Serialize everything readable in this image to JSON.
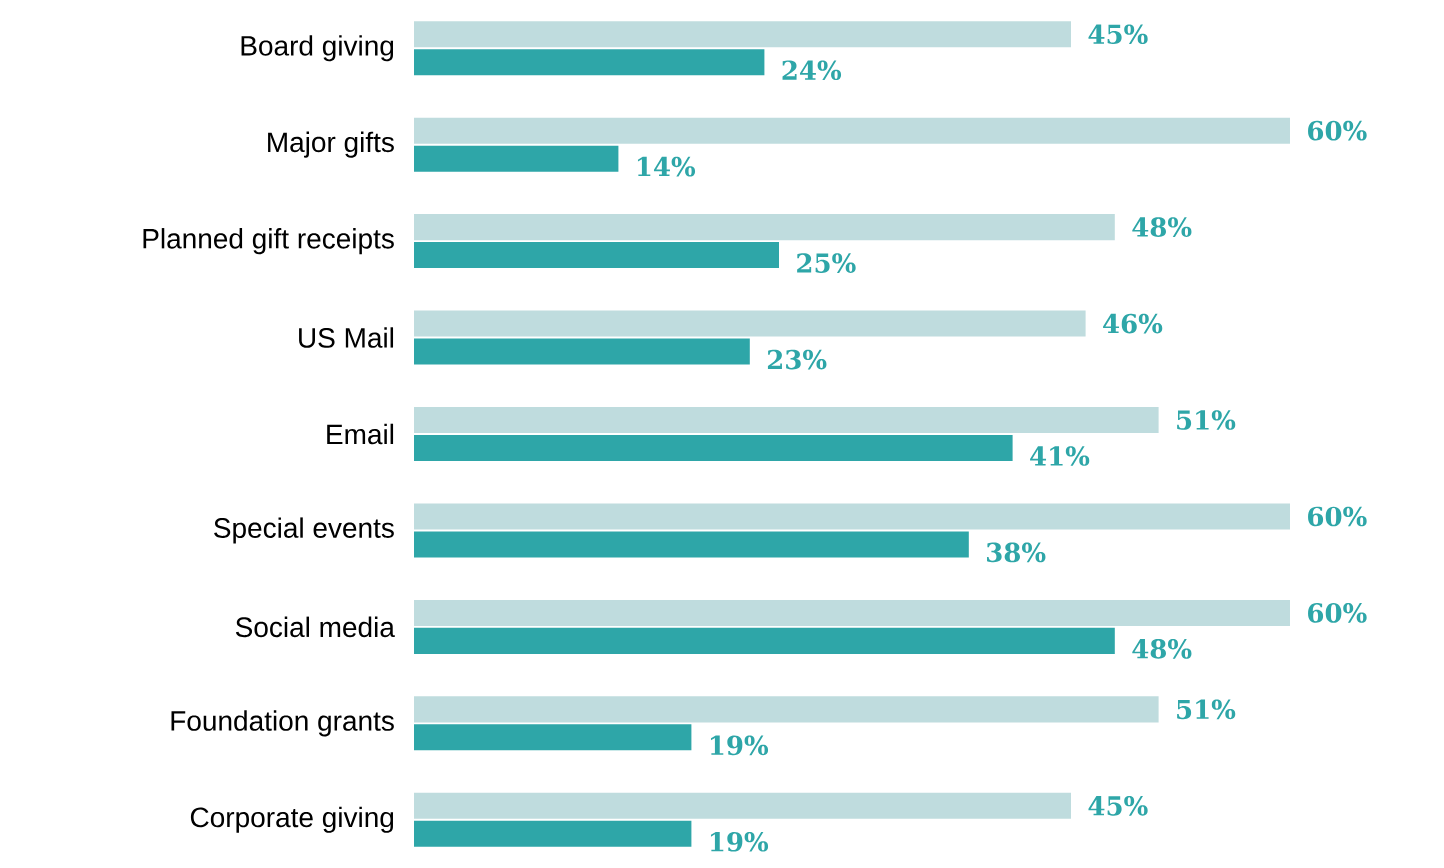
{
  "chart_data": {
    "type": "bar",
    "orientation": "horizontal",
    "categories": [
      "Board giving",
      "Major gifts",
      "Planned gift receipts",
      "US Mail",
      "Email",
      "Special events",
      "Social media",
      "Foundation grants",
      "Corporate giving"
    ],
    "series": [
      {
        "color": "#bfdcde",
        "values": [
          45,
          60,
          48,
          46,
          51,
          60,
          60,
          51,
          45
        ],
        "value_labels": [
          "45%",
          "60%",
          "48%",
          "46%",
          "51%",
          "60%",
          "60%",
          "51%",
          "45%"
        ]
      },
      {
        "color": "#2ea6a8",
        "values": [
          24,
          14,
          25,
          23,
          41,
          38,
          48,
          19,
          19
        ],
        "value_labels": [
          "24%",
          "14%",
          "25%",
          "23%",
          "41%",
          "38%",
          "48%",
          "19%",
          "19%"
        ]
      }
    ],
    "xlim": [
      0,
      60
    ],
    "tick_labels": "y"
  }
}
